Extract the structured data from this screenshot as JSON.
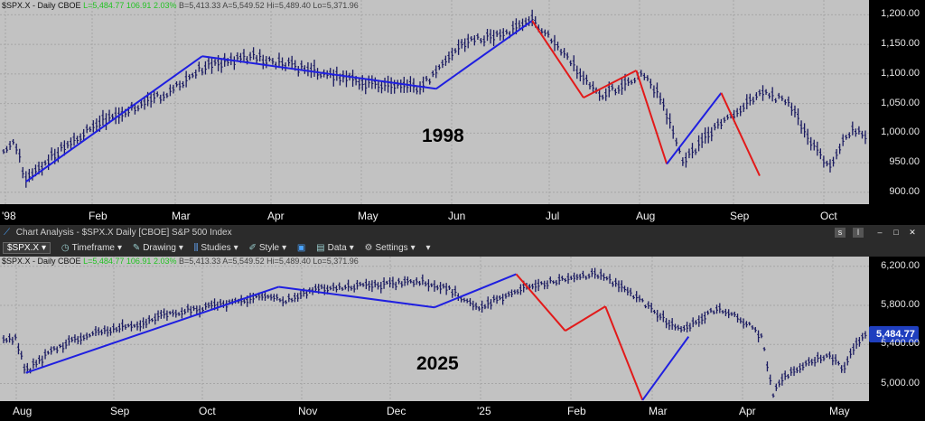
{
  "top_panel": {
    "info": {
      "symbol": "$SPX.X - Daily",
      "exchange": "CBOE",
      "last": "L=5,484.77",
      "change": "106.91",
      "change_pct": "2.03%",
      "bid": "B=5,413.33",
      "ask": "A=5,549.52",
      "hi": "Hi=5,489.40",
      "lo": "Lo=5,371.96"
    },
    "stamp": "1998",
    "y_ticks": [
      "1,200.00",
      "1,150.00",
      "1,100.00",
      "1,050.00",
      "1,000.00",
      "950.00",
      "900.00"
    ],
    "x_ticks": [
      "'98",
      "Feb",
      "Mar",
      "Apr",
      "May",
      "Jun",
      "Jul",
      "Aug",
      "Sep",
      "Oct"
    ]
  },
  "toolbar": {
    "title": "Chart Analysis - $SPX.X Daily [CBOE] S&P 500 Index",
    "symbol": "$SPX.X",
    "items": [
      "Timeframe",
      "Drawing",
      "Studies",
      "Style",
      "Data",
      "Settings"
    ]
  },
  "bottom_panel": {
    "info": {
      "symbol": "$SPX.X - Daily",
      "exchange": "CBOE",
      "last": "L=5,484.77",
      "change": "106.91",
      "change_pct": "2.03%",
      "bid": "B=5,413.33",
      "ask": "A=5,549.52",
      "hi": "Hi=5,489.40",
      "lo": "Lo=5,371.96"
    },
    "stamp": "2025",
    "last_price_badge": "5,484.77",
    "y_ticks": [
      "6,200.00",
      "5,800.00",
      "5,400.00",
      "5,000.00"
    ],
    "x_ticks": [
      "Aug",
      "Sep",
      "Oct",
      "Nov",
      "Dec",
      "'25",
      "Feb",
      "Mar",
      "Apr",
      "May"
    ]
  },
  "chart_data": [
    {
      "type": "line",
      "title": "",
      "series": [
        {
          "values": [
            [
              0,
              975
            ],
            [
              7,
              985
            ],
            [
              14,
              918
            ],
            [
              28,
              955
            ],
            [
              60,
              1020
            ],
            [
              100,
              1065
            ],
            [
              125,
              1112
            ],
            [
              155,
              1130
            ],
            [
              170,
              1120
            ],
            [
              200,
              1100
            ],
            [
              215,
              1090
            ],
            [
              230,
              1082
            ],
            [
              245,
              1080
            ],
            [
              260,
              1075
            ],
            [
              285,
              1150
            ],
            [
              315,
              1170
            ],
            [
              330,
              1190
            ],
            [
              345,
              1150
            ],
            [
              360,
              1100
            ],
            [
              372,
              1060
            ],
            [
              385,
              1080
            ],
            [
              400,
              1100
            ],
            [
              410,
              1060
            ],
            [
              425,
              950
            ],
            [
              440,
              1000
            ],
            [
              460,
              1040
            ],
            [
              475,
              1070
            ],
            [
              490,
              1050
            ],
            [
              505,
              980
            ],
            [
              515,
              940
            ],
            [
              525,
              990
            ],
            [
              530,
              1010
            ],
            [
              538,
              995
            ]
          ]
        }
      ],
      "trendlines": [
        {
          "color": "blue",
          "points": [
            [
              14,
              918
            ],
            [
              124,
              1130
            ]
          ]
        },
        {
          "color": "blue",
          "points": [
            [
              124,
              1130
            ],
            [
              270,
              1075
            ]
          ]
        },
        {
          "color": "blue",
          "points": [
            [
              270,
              1075
            ],
            [
              330,
              1190
            ]
          ]
        },
        {
          "color": "red",
          "points": [
            [
              330,
              1190
            ],
            [
              362,
              1060
            ]
          ]
        },
        {
          "color": "red",
          "points": [
            [
              362,
              1060
            ],
            [
              395,
              1106
            ]
          ]
        },
        {
          "color": "red",
          "points": [
            [
              395,
              1106
            ],
            [
              414,
              948
            ]
          ]
        },
        {
          "color": "blue",
          "points": [
            [
              414,
              948
            ],
            [
              448,
              1068
            ]
          ]
        },
        {
          "color": "red",
          "points": [
            [
              448,
              1068
            ],
            [
              472,
              928
            ]
          ]
        }
      ],
      "ylim": [
        880,
        1225
      ],
      "grid": true
    },
    {
      "type": "line",
      "title": "",
      "series": [
        {
          "values": [
            [
              0,
              5440
            ],
            [
              8,
              5460
            ],
            [
              15,
              5120
            ],
            [
              35,
              5360
            ],
            [
              60,
              5520
            ],
            [
              90,
              5600
            ],
            [
              110,
              5720
            ],
            [
              140,
              5780
            ],
            [
              170,
              5880
            ],
            [
              190,
              5850
            ],
            [
              215,
              5980
            ],
            [
              250,
              6000
            ],
            [
              280,
              6050
            ],
            [
              300,
              5960
            ],
            [
              320,
              5780
            ],
            [
              345,
              5950
            ],
            [
              380,
              6080
            ],
            [
              400,
              6120
            ],
            [
              420,
              5960
            ],
            [
              440,
              5700
            ],
            [
              455,
              5560
            ],
            [
              470,
              5650
            ],
            [
              480,
              5780
            ],
            [
              495,
              5680
            ],
            [
              510,
              5480
            ],
            [
              518,
              4900
            ],
            [
              525,
              5050
            ],
            [
              540,
              5200
            ],
            [
              555,
              5300
            ],
            [
              565,
              5150
            ],
            [
              575,
              5420
            ],
            [
              580,
              5480
            ]
          ]
        }
      ],
      "trendlines": [
        {
          "color": "blue",
          "points": [
            [
              15,
              5110
            ],
            [
              185,
              5990
            ]
          ]
        },
        {
          "color": "blue",
          "points": [
            [
              185,
              5990
            ],
            [
              290,
              5780
            ]
          ]
        },
        {
          "color": "blue",
          "points": [
            [
              290,
              5780
            ],
            [
              345,
              6120
            ]
          ]
        },
        {
          "color": "red",
          "points": [
            [
              345,
              6120
            ],
            [
              378,
              5540
            ]
          ]
        },
        {
          "color": "red",
          "points": [
            [
              378,
              5540
            ],
            [
              405,
              5790
            ]
          ]
        },
        {
          "color": "red",
          "points": [
            [
              405,
              5790
            ],
            [
              430,
              4830
            ]
          ]
        },
        {
          "color": "blue",
          "points": [
            [
              430,
              4830
            ],
            [
              461,
              5480
            ]
          ]
        }
      ],
      "ylim": [
        4820,
        6300
      ],
      "grid": true
    }
  ]
}
